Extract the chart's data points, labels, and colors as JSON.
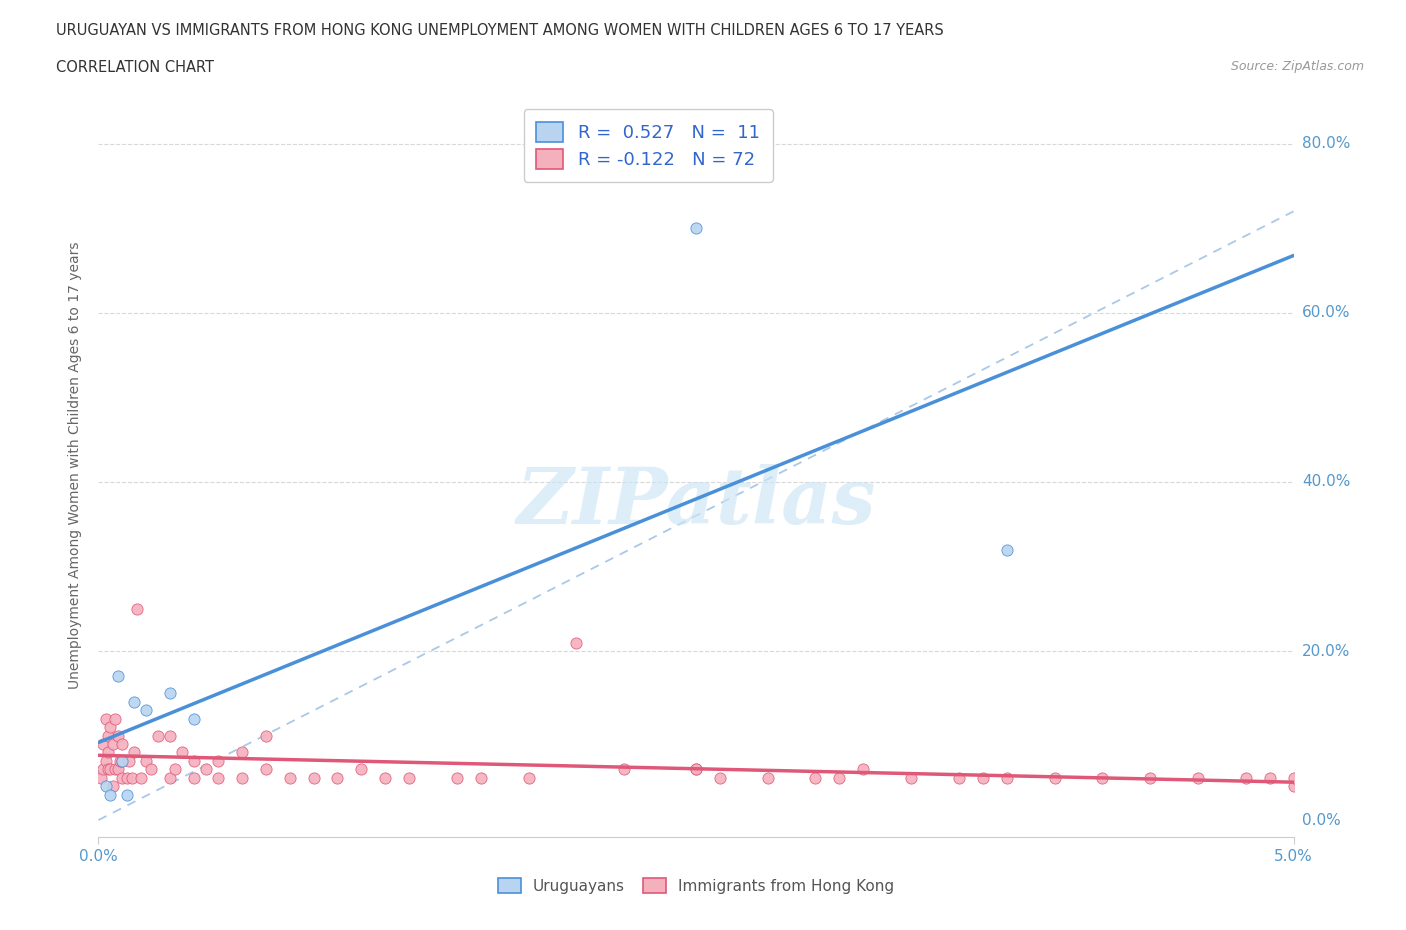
{
  "title_line1": "URUGUAYAN VS IMMIGRANTS FROM HONG KONG UNEMPLOYMENT AMONG WOMEN WITH CHILDREN AGES 6 TO 17 YEARS",
  "title_line2": "CORRELATION CHART",
  "source_text": "Source: ZipAtlas.com",
  "ylabel": "Unemployment Among Women with Children Ages 6 to 17 years",
  "xlim": [
    0.0,
    0.05
  ],
  "ylim": [
    -0.02,
    0.86
  ],
  "yticks": [
    0.0,
    0.2,
    0.4,
    0.6,
    0.8
  ],
  "ytick_labels": [
    "0.0%",
    "20.0%",
    "40.0%",
    "60.0%",
    "80.0%"
  ],
  "xtick_positions": [
    0.0,
    0.05
  ],
  "xtick_labels": [
    "0.0%",
    "5.0%"
  ],
  "uruguayan_x": [
    0.0003,
    0.0005,
    0.0008,
    0.001,
    0.0012,
    0.0015,
    0.002,
    0.003,
    0.004,
    0.025,
    0.038
  ],
  "uruguayan_y": [
    0.04,
    0.03,
    0.17,
    0.07,
    0.03,
    0.14,
    0.13,
    0.15,
    0.12,
    0.7,
    0.32
  ],
  "hk_x": [
    0.0001,
    0.0002,
    0.0002,
    0.0003,
    0.0003,
    0.0004,
    0.0004,
    0.0004,
    0.0005,
    0.0005,
    0.0006,
    0.0006,
    0.0007,
    0.0007,
    0.0008,
    0.0008,
    0.0009,
    0.001,
    0.001,
    0.001,
    0.0012,
    0.0013,
    0.0014,
    0.0015,
    0.0016,
    0.0018,
    0.002,
    0.0022,
    0.0025,
    0.003,
    0.003,
    0.0032,
    0.0035,
    0.004,
    0.004,
    0.0045,
    0.005,
    0.005,
    0.006,
    0.006,
    0.007,
    0.007,
    0.008,
    0.009,
    0.01,
    0.011,
    0.012,
    0.013,
    0.015,
    0.016,
    0.018,
    0.02,
    0.022,
    0.025,
    0.026,
    0.028,
    0.03,
    0.032,
    0.034,
    0.036,
    0.037,
    0.038,
    0.04,
    0.042,
    0.044,
    0.046,
    0.048,
    0.049,
    0.05,
    0.05,
    0.025,
    0.031
  ],
  "hk_y": [
    0.05,
    0.09,
    0.06,
    0.12,
    0.07,
    0.1,
    0.06,
    0.08,
    0.06,
    0.11,
    0.04,
    0.09,
    0.06,
    0.12,
    0.06,
    0.1,
    0.07,
    0.07,
    0.05,
    0.09,
    0.05,
    0.07,
    0.05,
    0.08,
    0.25,
    0.05,
    0.07,
    0.06,
    0.1,
    0.05,
    0.1,
    0.06,
    0.08,
    0.07,
    0.05,
    0.06,
    0.07,
    0.05,
    0.08,
    0.05,
    0.06,
    0.1,
    0.05,
    0.05,
    0.05,
    0.06,
    0.05,
    0.05,
    0.05,
    0.05,
    0.05,
    0.21,
    0.06,
    0.06,
    0.05,
    0.05,
    0.05,
    0.06,
    0.05,
    0.05,
    0.05,
    0.05,
    0.05,
    0.05,
    0.05,
    0.05,
    0.05,
    0.05,
    0.04,
    0.05,
    0.06,
    0.05
  ],
  "R_uruguayan": 0.527,
  "N_uruguayan": 11,
  "R_hk": -0.122,
  "N_hk": 72,
  "uruguayan_color": "#b8d4f0",
  "uruguayan_line_color": "#4a90d9",
  "hk_color": "#f5b0be",
  "hk_line_color": "#e05878",
  "watermark": "ZIPatlas",
  "background_color": "#ffffff",
  "grid_color": "#d8d8d8",
  "ref_line_color": "#aac8e8"
}
